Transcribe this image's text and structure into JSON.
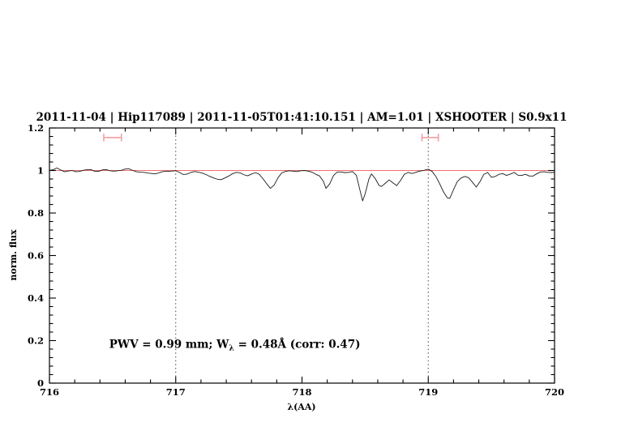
{
  "figure": {
    "background": "#ffffff",
    "frame_color": "#000000",
    "title_color": "#0000dd",
    "annotation_color": "#0000dd"
  },
  "chart_data": {
    "type": "line",
    "title": "2011-11-04 | Hip117089 | 2011-11-05T01:41:10.151 | AM=1.01 | XSHOOTER | S0.9x11",
    "xlabel": "λ(AA)",
    "ylabel": "norm. flux",
    "xlim": [
      716,
      720
    ],
    "ylim": [
      0,
      1.2
    ],
    "x_major_ticks": [
      716,
      717,
      718,
      719,
      720
    ],
    "x_tick_labels": [
      "716",
      "717",
      "718",
      "719",
      "720"
    ],
    "x_minor_step": 0.2,
    "y_major_ticks": [
      0,
      0.2,
      0.4,
      0.6,
      0.8,
      1.0,
      1.2
    ],
    "y_tick_labels": [
      "0",
      "0.2",
      "0.4",
      "0.6",
      "0.8",
      "1",
      "1.2"
    ],
    "y_minor_step": 0.04,
    "grid": "off",
    "dotted_vlines": [
      717,
      719
    ],
    "reference_hline": {
      "y": 1.0,
      "color": "#f26d6d"
    },
    "range_markers": [
      {
        "x_start": 716.43,
        "x_end": 716.57,
        "y": 1.155,
        "cap_half_height": 0.018,
        "color": "#f4a0a0"
      },
      {
        "x_start": 718.95,
        "x_end": 719.08,
        "y": 1.155,
        "cap_half_height": 0.018,
        "color": "#f4a0a0"
      }
    ],
    "annotation": {
      "text": "PWV = 0.99 mm; Wλ = 0.48Å (corr: 0.47)",
      "prefix": "PWV  =  0.99  mm;  W",
      "sub": "λ",
      "suffix": "  =  0.48Å  (corr:  0.47)",
      "x": 717.0,
      "y": 0.185,
      "color": "#0000dd"
    },
    "series": [
      {
        "name": "spectrum",
        "color": "#1a1a1a",
        "points": [
          [
            716.0,
            1.0
          ],
          [
            716.03,
            1.004
          ],
          [
            716.06,
            1.012
          ],
          [
            716.09,
            1.002
          ],
          [
            716.12,
            0.994
          ],
          [
            716.15,
            0.998
          ],
          [
            716.18,
            1.0
          ],
          [
            716.21,
            0.994
          ],
          [
            716.24,
            0.996
          ],
          [
            716.27,
            1.001
          ],
          [
            716.3,
            1.004
          ],
          [
            716.33,
            1.004
          ],
          [
            716.36,
            0.996
          ],
          [
            716.39,
            0.996
          ],
          [
            716.42,
            1.003
          ],
          [
            716.45,
            1.004
          ],
          [
            716.48,
            0.999
          ],
          [
            716.51,
            0.997
          ],
          [
            716.54,
            0.999
          ],
          [
            716.57,
            1.001
          ],
          [
            716.6,
            1.007
          ],
          [
            716.63,
            1.008
          ],
          [
            716.66,
            1.0
          ],
          [
            716.69,
            0.994
          ],
          [
            716.72,
            0.992
          ],
          [
            716.75,
            0.991
          ],
          [
            716.78,
            0.988
          ],
          [
            716.81,
            0.986
          ],
          [
            716.84,
            0.984
          ],
          [
            716.87,
            0.99
          ],
          [
            716.9,
            0.995
          ],
          [
            716.93,
            0.996
          ],
          [
            716.96,
            0.997
          ],
          [
            717.0,
            0.999
          ],
          [
            717.03,
            0.991
          ],
          [
            717.06,
            0.981
          ],
          [
            717.09,
            0.983
          ],
          [
            717.12,
            0.991
          ],
          [
            717.15,
            0.995
          ],
          [
            717.18,
            0.992
          ],
          [
            717.21,
            0.988
          ],
          [
            717.24,
            0.981
          ],
          [
            717.27,
            0.972
          ],
          [
            717.3,
            0.965
          ],
          [
            717.33,
            0.959
          ],
          [
            717.36,
            0.957
          ],
          [
            717.39,
            0.965
          ],
          [
            717.42,
            0.974
          ],
          [
            717.45,
            0.985
          ],
          [
            717.48,
            0.991
          ],
          [
            717.51,
            0.989
          ],
          [
            717.54,
            0.98
          ],
          [
            717.57,
            0.975
          ],
          [
            717.6,
            0.983
          ],
          [
            717.63,
            0.99
          ],
          [
            717.66,
            0.983
          ],
          [
            717.69,
            0.962
          ],
          [
            717.72,
            0.938
          ],
          [
            717.75,
            0.916
          ],
          [
            717.78,
            0.932
          ],
          [
            717.81,
            0.966
          ],
          [
            717.84,
            0.989
          ],
          [
            717.87,
            0.996
          ],
          [
            717.9,
            0.999
          ],
          [
            717.93,
            0.997
          ],
          [
            717.96,
            0.995
          ],
          [
            717.99,
            0.999
          ],
          [
            718.02,
            1.0
          ],
          [
            718.05,
            0.997
          ],
          [
            718.08,
            0.992
          ],
          [
            718.11,
            0.982
          ],
          [
            718.14,
            0.974
          ],
          [
            718.17,
            0.948
          ],
          [
            718.19,
            0.916
          ],
          [
            718.22,
            0.938
          ],
          [
            718.25,
            0.977
          ],
          [
            718.28,
            0.993
          ],
          [
            718.31,
            0.993
          ],
          [
            718.34,
            0.99
          ],
          [
            718.37,
            0.991
          ],
          [
            718.4,
            0.995
          ],
          [
            718.43,
            0.978
          ],
          [
            718.46,
            0.905
          ],
          [
            718.48,
            0.857
          ],
          [
            718.5,
            0.89
          ],
          [
            718.53,
            0.96
          ],
          [
            718.55,
            0.984
          ],
          [
            718.58,
            0.962
          ],
          [
            718.61,
            0.93
          ],
          [
            718.63,
            0.925
          ],
          [
            718.66,
            0.94
          ],
          [
            718.69,
            0.956
          ],
          [
            718.72,
            0.942
          ],
          [
            718.75,
            0.929
          ],
          [
            718.78,
            0.953
          ],
          [
            718.81,
            0.982
          ],
          [
            718.84,
            0.991
          ],
          [
            718.87,
            0.986
          ],
          [
            718.9,
            0.991
          ],
          [
            718.93,
            0.997
          ],
          [
            718.96,
            1.0
          ],
          [
            719.0,
            1.006
          ],
          [
            719.03,
            0.996
          ],
          [
            719.06,
            0.972
          ],
          [
            719.09,
            0.938
          ],
          [
            719.12,
            0.9
          ],
          [
            719.15,
            0.872
          ],
          [
            719.17,
            0.869
          ],
          [
            719.2,
            0.91
          ],
          [
            719.23,
            0.948
          ],
          [
            719.26,
            0.965
          ],
          [
            719.29,
            0.972
          ],
          [
            719.32,
            0.966
          ],
          [
            719.35,
            0.945
          ],
          [
            719.38,
            0.922
          ],
          [
            719.41,
            0.948
          ],
          [
            719.44,
            0.982
          ],
          [
            719.47,
            0.991
          ],
          [
            719.5,
            0.968
          ],
          [
            719.53,
            0.972
          ],
          [
            719.56,
            0.982
          ],
          [
            719.59,
            0.985
          ],
          [
            719.62,
            0.977
          ],
          [
            719.65,
            0.983
          ],
          [
            719.68,
            0.991
          ],
          [
            719.71,
            0.978
          ],
          [
            719.74,
            0.977
          ],
          [
            719.77,
            0.982
          ],
          [
            719.8,
            0.974
          ],
          [
            719.83,
            0.974
          ],
          [
            719.86,
            0.985
          ],
          [
            719.89,
            0.993
          ],
          [
            719.92,
            0.994
          ],
          [
            719.95,
            0.991
          ],
          [
            719.98,
            0.99
          ],
          [
            720.0,
            0.992
          ]
        ]
      }
    ]
  }
}
